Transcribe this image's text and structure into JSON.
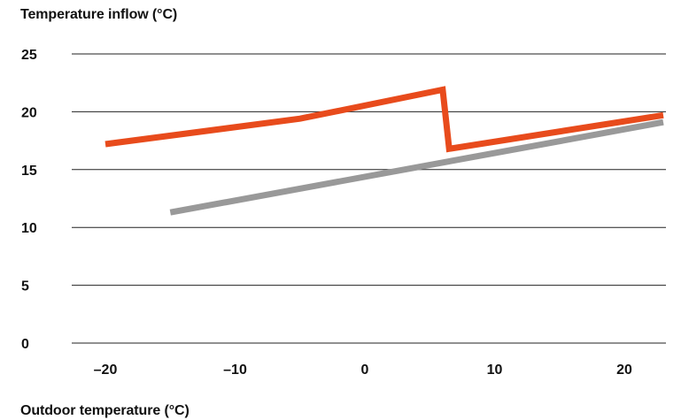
{
  "chart_data": {
    "type": "line",
    "title": "",
    "ylabel": "Temperature inflow (°C)",
    "xlabel": "Outdoor temperature (°C)",
    "xlim": [
      -24,
      24
    ],
    "ylim": [
      0,
      25
    ],
    "yticks": [
      25,
      20,
      15,
      10,
      5,
      0
    ],
    "ytick_labels": [
      "25",
      "20",
      "15",
      "10",
      "5",
      "0"
    ],
    "xticks": [
      -20,
      -10,
      0,
      10,
      20
    ],
    "xtick_labels": [
      "–20",
      "–10",
      "0",
      "10",
      "20"
    ],
    "grid": "horizontal",
    "legend": "none",
    "series": [
      {
        "color": "#e84b1c",
        "x": [
          -20,
          -5,
          6,
          6.5,
          23
        ],
        "y": [
          17.2,
          19.4,
          21.9,
          16.8,
          19.7
        ]
      },
      {
        "color": "#999999",
        "x": [
          -15,
          23
        ],
        "y": [
          11.3,
          19.1
        ]
      }
    ]
  }
}
